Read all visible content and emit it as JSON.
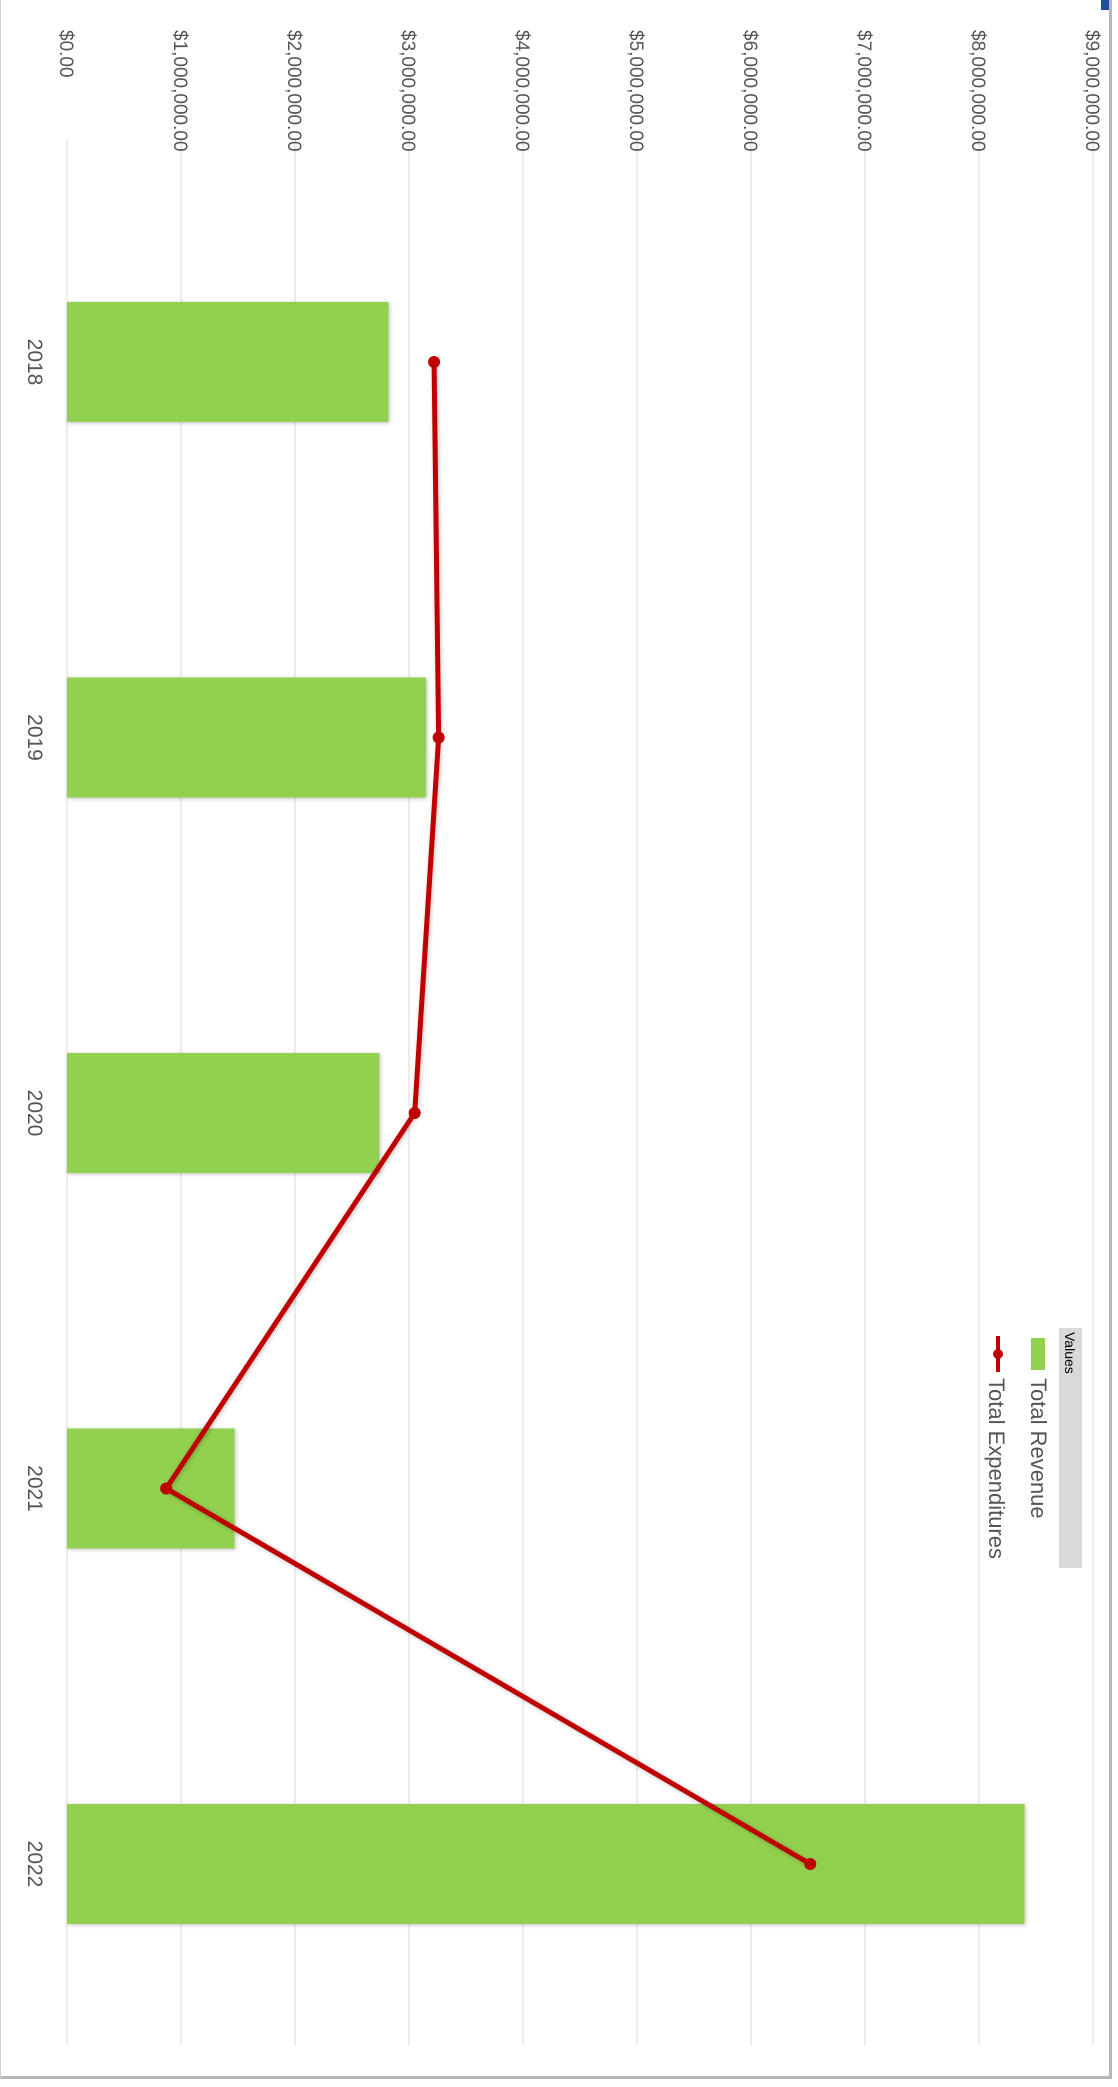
{
  "chart_data": {
    "type": "bar",
    "orientation": "rotated-90-clockwise",
    "categories": [
      "2018",
      "2019",
      "2020",
      "2021",
      "2022"
    ],
    "series": [
      {
        "name": "Total Revenue",
        "type": "bar",
        "color": "#92d050",
        "values": [
          2820000,
          3150000,
          2740000,
          1470000,
          8400000
        ]
      },
      {
        "name": "Total Expenditures",
        "type": "line",
        "color": "#c00000",
        "values": [
          3220000,
          3260000,
          3050000,
          870000,
          6520000
        ]
      }
    ],
    "value_axis": {
      "min": 0,
      "max": 9000000,
      "step": 1000000,
      "tick_labels": [
        "$0.00",
        "$1,000,000.00",
        "$2,000,000.00",
        "$3,000,000.00",
        "$4,000,000.00",
        "$5,000,000.00",
        "$6,000,000.00",
        "$7,000,000.00",
        "$8,000,000.00",
        "$9,000,000.00"
      ],
      "grid": true
    },
    "legend": {
      "title": "Values",
      "placement": "right"
    }
  },
  "colors": {
    "grid": "#d9d9d9",
    "text": "#555555",
    "legend_bg": "#d9d9d9"
  }
}
